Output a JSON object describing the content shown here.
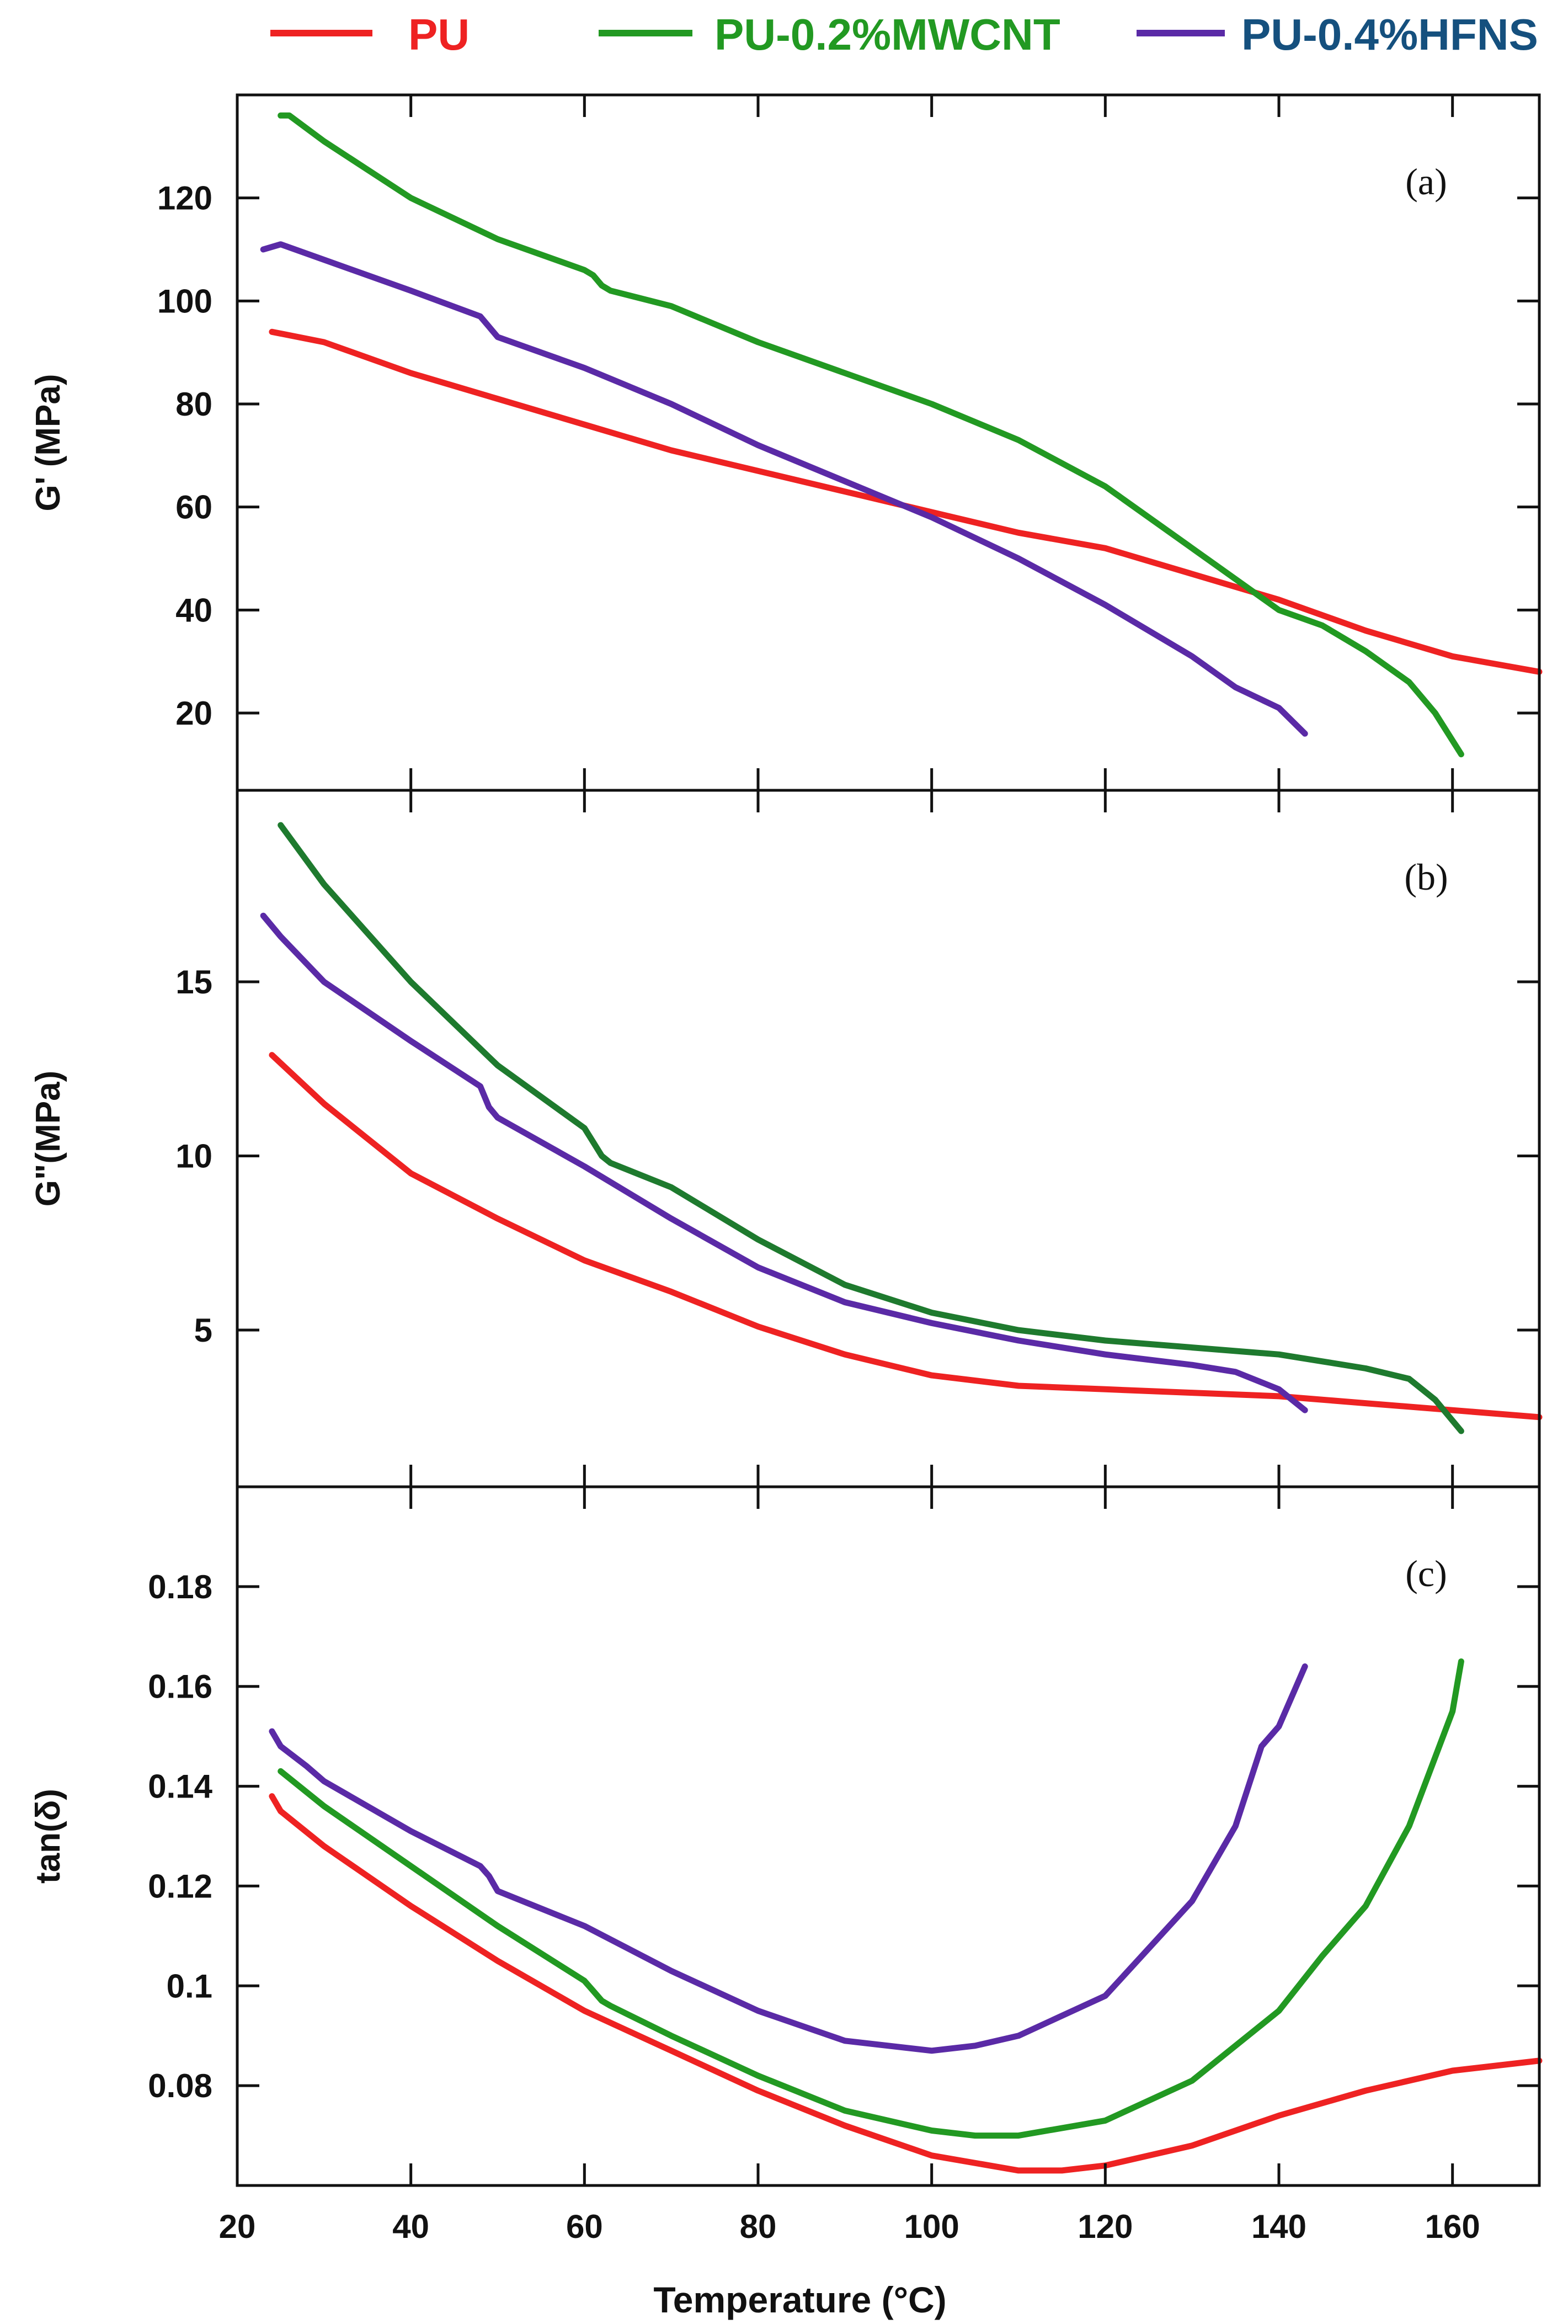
{
  "legend": [
    {
      "label": "PU",
      "color": "#ee2222"
    },
    {
      "label": "PU-0.2%MWCNT",
      "color": "#229922"
    },
    {
      "label": "PU-0.4%HFNS",
      "color": "#5a2aa6",
      "label_color": "#15507e"
    }
  ],
  "chart_data": [
    {
      "type": "line",
      "panel": "(a)",
      "ylabel": "G' (MPa)",
      "xlabel": "Temperature (°C)",
      "xlim": [
        20,
        170
      ],
      "ylim": [
        5,
        140
      ],
      "yticks": [
        20,
        40,
        60,
        80,
        100,
        120
      ],
      "ytick_labels": [
        "20",
        "40",
        "60",
        "80",
        "100",
        "120"
      ],
      "series": [
        {
          "name": "PU",
          "color": "#ee2222",
          "x": [
            24,
            30,
            40,
            50,
            60,
            70,
            80,
            90,
            100,
            110,
            120,
            130,
            140,
            150,
            160,
            170
          ],
          "y": [
            94,
            92,
            86,
            81,
            76,
            71,
            67,
            63,
            59,
            55,
            52,
            47,
            42,
            36,
            31,
            28
          ]
        },
        {
          "name": "PU-0.2%MWCNT",
          "color": "#229922",
          "x": [
            25,
            26,
            30,
            40,
            50,
            60,
            61,
            62,
            63,
            70,
            80,
            90,
            100,
            110,
            120,
            130,
            140,
            145,
            150,
            155,
            158,
            161
          ],
          "y": [
            136,
            136,
            131,
            120,
            112,
            106,
            105,
            103,
            102,
            99,
            92,
            86,
            80,
            73,
            64,
            52,
            40,
            37,
            32,
            26,
            20,
            12
          ]
        },
        {
          "name": "PU-0.4%HFNS",
          "color": "#5a2aa6",
          "x": [
            23,
            25,
            30,
            40,
            48,
            49,
            50,
            60,
            70,
            80,
            90,
            100,
            110,
            120,
            130,
            135,
            140,
            143
          ],
          "y": [
            110,
            111,
            108,
            102,
            97,
            95,
            93,
            87,
            80,
            72,
            65,
            58,
            50,
            41,
            31,
            25,
            21,
            16
          ]
        }
      ]
    },
    {
      "type": "line",
      "panel": "(b)",
      "ylabel": "G\"(MPa)",
      "xlabel": "Temperature (°C)",
      "xlim": [
        20,
        170
      ],
      "ylim": [
        0.5,
        20.5
      ],
      "yticks": [
        5,
        10,
        15
      ],
      "ytick_labels": [
        "5",
        "10",
        "15"
      ],
      "series": [
        {
          "name": "PU",
          "color": "#ee2222",
          "x": [
            24,
            30,
            40,
            50,
            60,
            70,
            80,
            90,
            100,
            110,
            120,
            130,
            140,
            150,
            160,
            170
          ],
          "y": [
            12.9,
            11.5,
            9.5,
            8.2,
            7.0,
            6.1,
            5.1,
            4.3,
            3.7,
            3.4,
            3.3,
            3.2,
            3.1,
            2.9,
            2.7,
            2.5
          ]
        },
        {
          "name": "PU-0.2%MWCNT",
          "color": "#1e7a2e",
          "x": [
            25,
            30,
            40,
            50,
            60,
            61,
            62,
            63,
            70,
            80,
            90,
            100,
            110,
            120,
            130,
            140,
            145,
            150,
            155,
            158,
            161
          ],
          "y": [
            19.5,
            17.8,
            15.0,
            12.6,
            10.8,
            10.4,
            10.0,
            9.8,
            9.1,
            7.6,
            6.3,
            5.5,
            5.0,
            4.7,
            4.5,
            4.3,
            4.1,
            3.9,
            3.6,
            3.0,
            2.1
          ]
        },
        {
          "name": "PU-0.4%HFNS",
          "color": "#5a2aa6",
          "x": [
            23,
            25,
            30,
            40,
            48,
            49,
            50,
            60,
            70,
            80,
            90,
            100,
            110,
            120,
            130,
            135,
            140,
            143
          ],
          "y": [
            16.9,
            16.3,
            15.0,
            13.3,
            12.0,
            11.4,
            11.1,
            9.7,
            8.2,
            6.8,
            5.8,
            5.2,
            4.7,
            4.3,
            4.0,
            3.8,
            3.3,
            2.7
          ]
        }
      ]
    },
    {
      "type": "line",
      "panel": "(c)",
      "ylabel": "tan(δ)",
      "xlabel": "Temperature (°C)",
      "xlim": [
        20,
        170
      ],
      "xticks": [
        20,
        40,
        60,
        80,
        100,
        120,
        140,
        160
      ],
      "xtick_labels": [
        "20",
        "40",
        "60",
        "80",
        "100",
        "120",
        "140",
        "160"
      ],
      "ylim": [
        0.06,
        0.2
      ],
      "yticks": [
        0.08,
        0.1,
        0.12,
        0.14,
        0.16,
        0.18
      ],
      "ytick_labels": [
        "0.08",
        "0.1",
        "0.12",
        "0.14",
        "0.16",
        "0.18"
      ],
      "series": [
        {
          "name": "PU",
          "color": "#ee2222",
          "x": [
            24,
            25,
            30,
            40,
            50,
            60,
            70,
            80,
            90,
            100,
            110,
            115,
            120,
            130,
            140,
            150,
            160,
            170
          ],
          "y": [
            0.138,
            0.135,
            0.128,
            0.116,
            0.105,
            0.095,
            0.087,
            0.079,
            0.072,
            0.066,
            0.063,
            0.063,
            0.064,
            0.068,
            0.074,
            0.079,
            0.083,
            0.085
          ]
        },
        {
          "name": "PU-0.2%MWCNT",
          "color": "#229922",
          "x": [
            25,
            30,
            40,
            50,
            60,
            61,
            62,
            63,
            70,
            80,
            90,
            100,
            105,
            110,
            120,
            130,
            140,
            145,
            150,
            155,
            160,
            161
          ],
          "y": [
            0.143,
            0.136,
            0.124,
            0.112,
            0.101,
            0.099,
            0.097,
            0.096,
            0.09,
            0.082,
            0.075,
            0.071,
            0.07,
            0.07,
            0.073,
            0.081,
            0.095,
            0.106,
            0.116,
            0.132,
            0.155,
            0.165
          ]
        },
        {
          "name": "PU-0.4%HFNS",
          "color": "#5a2aa6",
          "x": [
            24,
            25,
            28,
            30,
            40,
            48,
            49,
            50,
            60,
            70,
            80,
            90,
            100,
            105,
            110,
            120,
            130,
            135,
            138,
            140,
            143
          ],
          "y": [
            0.151,
            0.148,
            0.144,
            0.141,
            0.131,
            0.124,
            0.122,
            0.119,
            0.112,
            0.103,
            0.095,
            0.089,
            0.087,
            0.088,
            0.09,
            0.098,
            0.117,
            0.132,
            0.148,
            0.152,
            0.164
          ]
        }
      ]
    }
  ]
}
